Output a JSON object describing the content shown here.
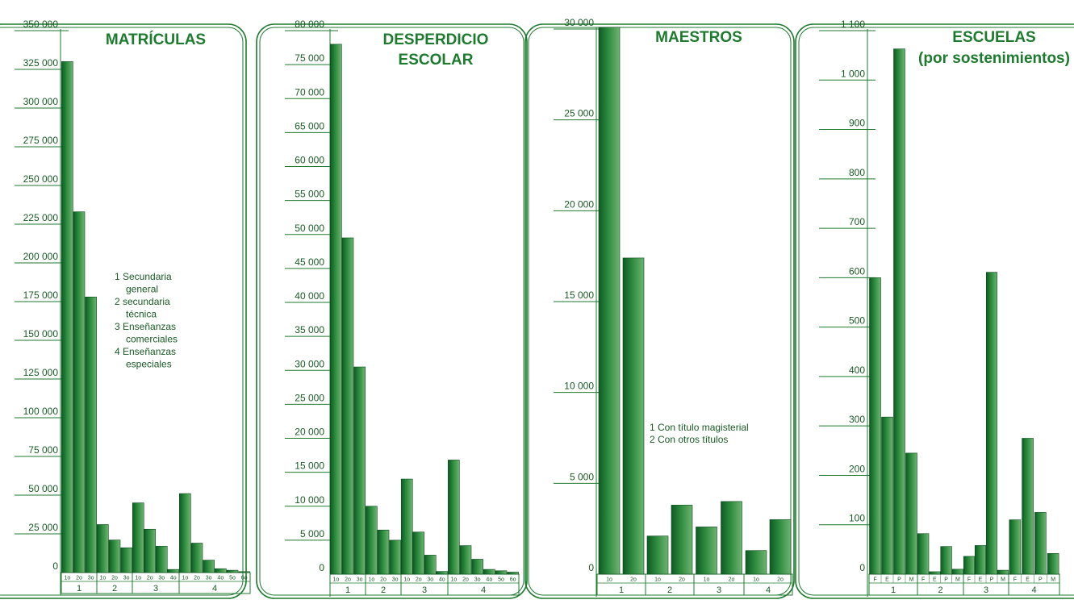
{
  "colors": {
    "bar_dark": "#0e5a24",
    "bar_mid": "#2e8b3e",
    "bar_light": "#6fb373",
    "line": "#1e7a2e",
    "text": "#1a5a25"
  },
  "chart_data": [
    {
      "type": "bar",
      "title": [
        "MATRÍCULAS"
      ],
      "ylim": [
        0,
        350000
      ],
      "yticks": [
        "0",
        "25 000",
        "50 000",
        "75 000",
        "100 000",
        "125 000",
        "150 000",
        "175 000",
        "200 000",
        "225 000",
        "250 000",
        "275 000",
        "300 000",
        "325 000",
        "350 000"
      ],
      "grid": false,
      "groups": [
        {
          "label": "1",
          "categories": [
            "1o",
            "2o",
            "3o"
          ],
          "values": [
            330000,
            233000,
            178000
          ]
        },
        {
          "label": "2",
          "categories": [
            "1o",
            "2o",
            "3o"
          ],
          "values": [
            31000,
            21000,
            16000
          ]
        },
        {
          "label": "3",
          "categories": [
            "1o",
            "2o",
            "3o",
            "4o"
          ],
          "values": [
            45000,
            28000,
            17000,
            2000
          ]
        },
        {
          "label": "4",
          "categories": [
            "1o",
            "2o",
            "3o",
            "4o",
            "5o",
            "6o"
          ],
          "values": [
            51000,
            19000,
            8000,
            2500,
            1500,
            600
          ]
        }
      ],
      "legend": [
        "1  Secundaria",
        "    general",
        "2  secundaria",
        "    técnica",
        "3  Enseñanzas",
        "    comerciales",
        "4  Enseñanzas",
        "    especiales"
      ]
    },
    {
      "type": "bar",
      "title": [
        "DESPERDICIO",
        "ESCOLAR"
      ],
      "ylim": [
        0,
        80000
      ],
      "yticks": [
        "0",
        "5 000",
        "10 000",
        "15 000",
        "20 000",
        "25 000",
        "30 000",
        "35 000",
        "40 000",
        "45 000",
        "50 000",
        "55 000",
        "60 000",
        "65 000",
        "70 000",
        "75 000",
        "80 000"
      ],
      "grid": false,
      "groups": [
        {
          "label": "1",
          "categories": [
            "1o",
            "2o",
            "3o"
          ],
          "values": [
            78000,
            49500,
            30500
          ]
        },
        {
          "label": "2",
          "categories": [
            "1o",
            "2o",
            "3o"
          ],
          "values": [
            10000,
            6500,
            5000
          ]
        },
        {
          "label": "3",
          "categories": [
            "1o",
            "2o",
            "3o",
            "4o"
          ],
          "values": [
            14000,
            6200,
            2800,
            400
          ]
        },
        {
          "label": "4",
          "categories": [
            "1o",
            "2o",
            "3o",
            "4o",
            "5o",
            "6o"
          ],
          "values": [
            16800,
            4200,
            2200,
            700,
            500,
            300
          ]
        }
      ]
    },
    {
      "type": "bar",
      "title": [
        "MAESTROS"
      ],
      "ylim": [
        0,
        30000
      ],
      "yticks": [
        "0",
        "5 000",
        "10 000",
        "15 000",
        "20 000",
        "25 000",
        "30 000"
      ],
      "grid": false,
      "groups": [
        {
          "label": "1",
          "categories": [
            "1o",
            "2o"
          ],
          "values": [
            30100,
            17400
          ]
        },
        {
          "label": "2",
          "categories": [
            "1o",
            "2o"
          ],
          "values": [
            2100,
            3800
          ]
        },
        {
          "label": "3",
          "categories": [
            "1o",
            "2o"
          ],
          "values": [
            2600,
            4000
          ]
        },
        {
          "label": "4",
          "categories": [
            "1o",
            "2o"
          ],
          "values": [
            1300,
            3000
          ]
        }
      ],
      "legend": [
        "1  Con título magisterial",
        "2  Con otros títulos"
      ]
    },
    {
      "type": "bar",
      "title": [
        "ESCUELAS",
        "(por sostenimientos)"
      ],
      "ylim": [
        0,
        1100
      ],
      "yticks": [
        "0",
        "100",
        "200",
        "300",
        "400",
        "500",
        "600",
        "700",
        "800",
        "900",
        "1 000",
        "1 100"
      ],
      "grid": false,
      "groups": [
        {
          "label": "1",
          "categories": [
            "F",
            "E",
            "P",
            "M"
          ],
          "values": [
            600,
            318,
            1063,
            245
          ]
        },
        {
          "label": "2",
          "categories": [
            "F",
            "E",
            "P",
            "M"
          ],
          "values": [
            82,
            5,
            56,
            10
          ]
        },
        {
          "label": "3",
          "categories": [
            "F",
            "E",
            "P",
            "M"
          ],
          "values": [
            36,
            58,
            611,
            8
          ]
        },
        {
          "label": "4",
          "categories": [
            "F",
            "E",
            "P",
            "M"
          ],
          "values": [
            110,
            275,
            125,
            42
          ]
        }
      ]
    }
  ]
}
